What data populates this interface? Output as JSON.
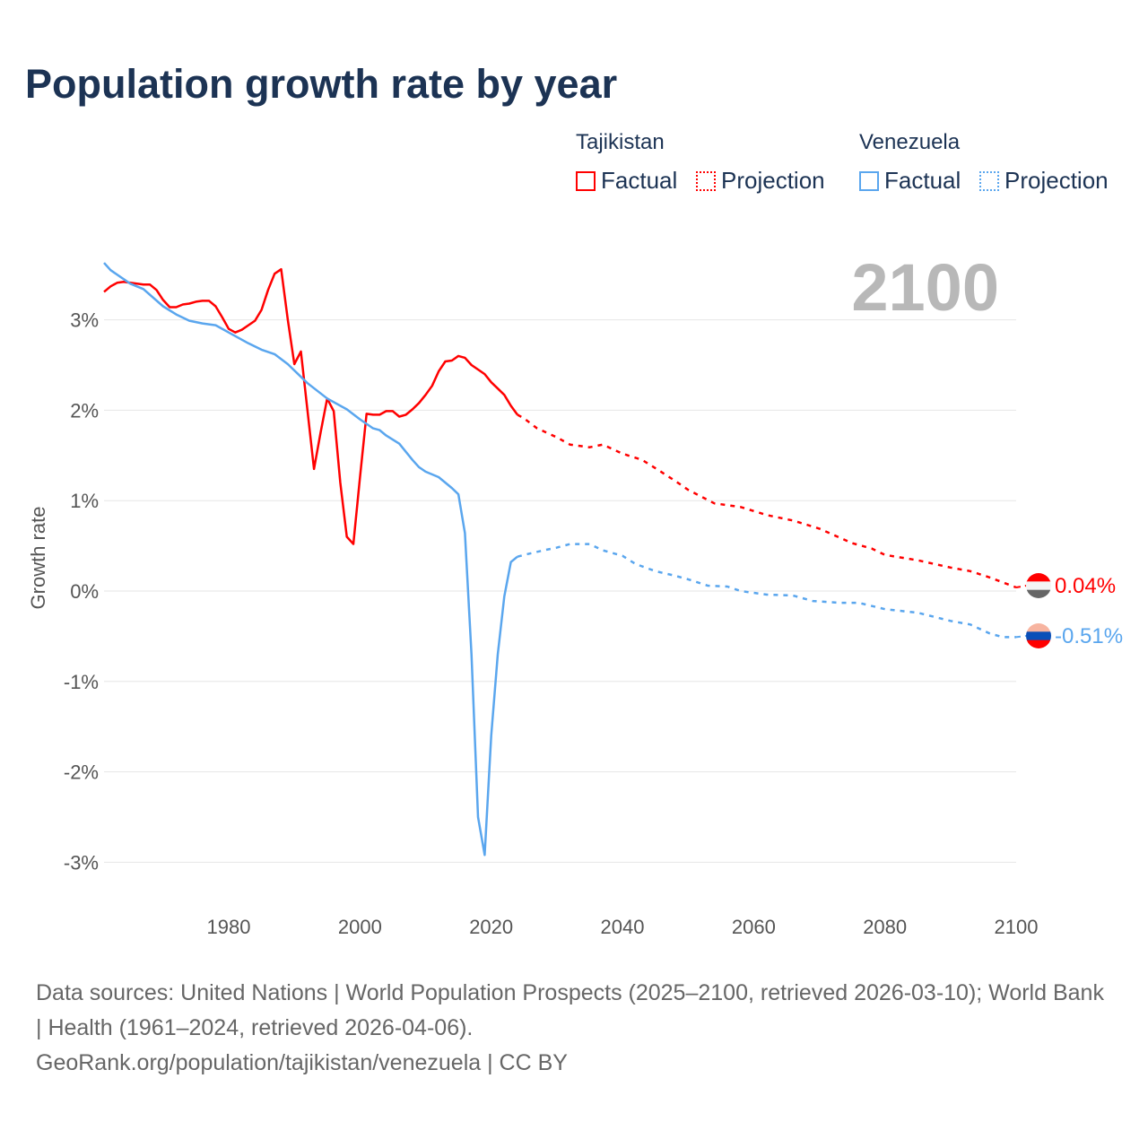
{
  "title": "Population growth rate by year",
  "legend": {
    "countries": [
      {
        "name": "Tajikistan",
        "factual": "Factual",
        "projection": "Projection",
        "color": "#ff0000"
      },
      {
        "name": "Venezuela",
        "factual": "Factual",
        "projection": "Projection",
        "color": "#5aa6ee"
      }
    ]
  },
  "current_year": "2100",
  "end_labels": {
    "tajikistan": "0.04%",
    "venezuela": "-0.51%"
  },
  "footer": {
    "line1": "Data sources: United Nations | World Population Prospects (2025–2100, retrieved 2026-03-10); World Bank | Health (1961–2024, retrieved 2026-04-06).",
    "line2": "GeoRank.org/population/tajikistan/venezuela | CC BY"
  },
  "chart_data": {
    "type": "line",
    "title": "Population growth rate by year",
    "xlabel": "",
    "ylabel": "Growth rate",
    "xlim": [
      1961,
      2100
    ],
    "ylim": [
      -3.3,
      3.8
    ],
    "xticks": [
      1980,
      2000,
      2020,
      2040,
      2060,
      2080,
      2100
    ],
    "xtick_labels": [
      "1980",
      "2000",
      "2020",
      "2040",
      "2060",
      "2080",
      "2100"
    ],
    "yticks": [
      3,
      2,
      1,
      0,
      -1,
      -2,
      -3
    ],
    "ytick_labels": [
      "3%",
      "2%",
      "1%",
      "0%",
      "-1%",
      "-2%",
      "-3%"
    ],
    "grid": true,
    "legend_position": "top-right",
    "series": [
      {
        "name": "Tajikistan Factual",
        "color": "#ff0000",
        "dash": false,
        "points": [
          [
            1961,
            3.31
          ],
          [
            1962,
            3.37
          ],
          [
            1963,
            3.41
          ],
          [
            1964,
            3.42
          ],
          [
            1965,
            3.41
          ],
          [
            1966,
            3.4
          ],
          [
            1967,
            3.39
          ],
          [
            1968,
            3.39
          ],
          [
            1969,
            3.33
          ],
          [
            1970,
            3.22
          ],
          [
            1971,
            3.14
          ],
          [
            1972,
            3.14
          ],
          [
            1973,
            3.17
          ],
          [
            1974,
            3.18
          ],
          [
            1975,
            3.2
          ],
          [
            1976,
            3.21
          ],
          [
            1977,
            3.21
          ],
          [
            1978,
            3.15
          ],
          [
            1979,
            3.03
          ],
          [
            1980,
            2.9
          ],
          [
            1981,
            2.86
          ],
          [
            1982,
            2.89
          ],
          [
            1983,
            2.94
          ],
          [
            1984,
            2.99
          ],
          [
            1985,
            3.11
          ],
          [
            1986,
            3.33
          ],
          [
            1987,
            3.51
          ],
          [
            1988,
            3.56
          ],
          [
            1989,
            3.0
          ],
          [
            1990,
            2.51
          ],
          [
            1991,
            2.65
          ],
          [
            1992,
            2.0
          ],
          [
            1993,
            1.35
          ],
          [
            1994,
            1.75
          ],
          [
            1995,
            2.13
          ],
          [
            1996,
            1.99
          ],
          [
            1997,
            1.2
          ],
          [
            1998,
            0.6
          ],
          [
            1999,
            0.52
          ],
          [
            2000,
            1.25
          ],
          [
            2001,
            1.96
          ],
          [
            2002,
            1.95
          ],
          [
            2003,
            1.95
          ],
          [
            2004,
            1.99
          ],
          [
            2005,
            1.99
          ],
          [
            2006,
            1.93
          ],
          [
            2007,
            1.95
          ],
          [
            2008,
            2.01
          ],
          [
            2009,
            2.08
          ],
          [
            2010,
            2.17
          ],
          [
            2011,
            2.27
          ],
          [
            2012,
            2.43
          ],
          [
            2013,
            2.54
          ],
          [
            2014,
            2.55
          ],
          [
            2015,
            2.6
          ],
          [
            2016,
            2.58
          ],
          [
            2017,
            2.5
          ],
          [
            2018,
            2.45
          ],
          [
            2019,
            2.4
          ],
          [
            2020,
            2.31
          ],
          [
            2021,
            2.24
          ],
          [
            2022,
            2.17
          ],
          [
            2023,
            2.05
          ],
          [
            2024,
            1.95
          ]
        ]
      },
      {
        "name": "Tajikistan Projection",
        "color": "#ff0000",
        "dash": true,
        "points": [
          [
            2024,
            1.95
          ],
          [
            2025,
            1.91
          ],
          [
            2027,
            1.8
          ],
          [
            2030,
            1.7
          ],
          [
            2032,
            1.62
          ],
          [
            2035,
            1.59
          ],
          [
            2037,
            1.62
          ],
          [
            2040,
            1.52
          ],
          [
            2043,
            1.45
          ],
          [
            2045,
            1.36
          ],
          [
            2048,
            1.22
          ],
          [
            2050,
            1.12
          ],
          [
            2054,
            0.97
          ],
          [
            2058,
            0.93
          ],
          [
            2062,
            0.84
          ],
          [
            2066,
            0.78
          ],
          [
            2070,
            0.69
          ],
          [
            2075,
            0.53
          ],
          [
            2078,
            0.47
          ],
          [
            2080,
            0.4
          ],
          [
            2085,
            0.34
          ],
          [
            2090,
            0.26
          ],
          [
            2093,
            0.22
          ],
          [
            2096,
            0.15
          ],
          [
            2100,
            0.04
          ]
        ]
      },
      {
        "name": "Venezuela Factual",
        "color": "#5aa6ee",
        "dash": false,
        "points": [
          [
            1961,
            3.63
          ],
          [
            1962,
            3.55
          ],
          [
            1965,
            3.4
          ],
          [
            1967,
            3.34
          ],
          [
            1970,
            3.15
          ],
          [
            1972,
            3.06
          ],
          [
            1974,
            2.99
          ],
          [
            1976,
            2.96
          ],
          [
            1978,
            2.94
          ],
          [
            1980,
            2.86
          ],
          [
            1983,
            2.74
          ],
          [
            1985,
            2.67
          ],
          [
            1987,
            2.62
          ],
          [
            1989,
            2.51
          ],
          [
            1992,
            2.3
          ],
          [
            1995,
            2.13
          ],
          [
            1998,
            2.01
          ],
          [
            2000,
            1.9
          ],
          [
            2002,
            1.8
          ],
          [
            2003,
            1.78
          ],
          [
            2004,
            1.72
          ],
          [
            2006,
            1.63
          ],
          [
            2008,
            1.45
          ],
          [
            2009,
            1.37
          ],
          [
            2010,
            1.32
          ],
          [
            2012,
            1.26
          ],
          [
            2014,
            1.14
          ],
          [
            2015,
            1.07
          ],
          [
            2016,
            0.64
          ],
          [
            2017,
            -0.7
          ],
          [
            2018,
            -2.5
          ],
          [
            2019,
            -2.92
          ],
          [
            2020,
            -1.6
          ],
          [
            2021,
            -0.7
          ],
          [
            2022,
            -0.06
          ],
          [
            2023,
            0.32
          ],
          [
            2024,
            0.38
          ]
        ]
      },
      {
        "name": "Venezuela Projection",
        "color": "#5aa6ee",
        "dash": true,
        "points": [
          [
            2024,
            0.38
          ],
          [
            2025,
            0.4
          ],
          [
            2028,
            0.45
          ],
          [
            2030,
            0.48
          ],
          [
            2032,
            0.52
          ],
          [
            2035,
            0.52
          ],
          [
            2037,
            0.45
          ],
          [
            2040,
            0.39
          ],
          [
            2042,
            0.3
          ],
          [
            2045,
            0.22
          ],
          [
            2048,
            0.17
          ],
          [
            2050,
            0.13
          ],
          [
            2053,
            0.06
          ],
          [
            2056,
            0.05
          ],
          [
            2058,
            0.0
          ],
          [
            2062,
            -0.04
          ],
          [
            2066,
            -0.05
          ],
          [
            2069,
            -0.11
          ],
          [
            2073,
            -0.13
          ],
          [
            2076,
            -0.13
          ],
          [
            2080,
            -0.2
          ],
          [
            2085,
            -0.24
          ],
          [
            2090,
            -0.33
          ],
          [
            2093,
            -0.37
          ],
          [
            2096,
            -0.47
          ],
          [
            2098,
            -0.51
          ],
          [
            2100,
            -0.51
          ]
        ]
      }
    ]
  }
}
